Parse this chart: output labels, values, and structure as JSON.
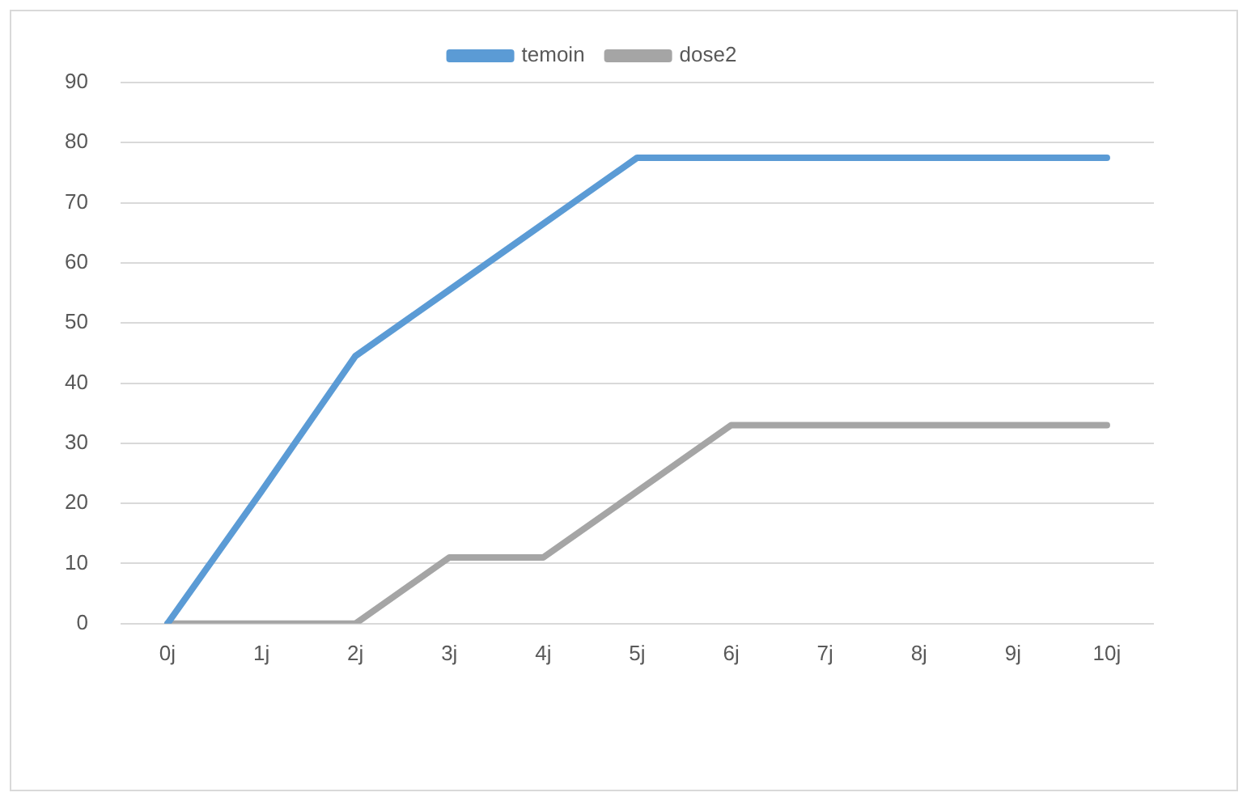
{
  "chart_data": {
    "type": "line",
    "categories": [
      "0j",
      "1j",
      "2j",
      "3j",
      "4j",
      "5j",
      "6j",
      "7j",
      "8j",
      "9j",
      "10j"
    ],
    "series": [
      {
        "name": "temoin",
        "color": "#5b9bd5",
        "values": [
          0,
          22,
          44.5,
          55.5,
          66.5,
          77.5,
          77.5,
          77.5,
          77.5,
          77.5,
          77.5
        ]
      },
      {
        "name": "dose2",
        "color": "#a5a5a5",
        "values": [
          0,
          0,
          0,
          11,
          11,
          22,
          33,
          33,
          33,
          33,
          33
        ]
      }
    ],
    "ylim": [
      0,
      90
    ],
    "yticks": [
      0,
      10,
      20,
      30,
      40,
      50,
      60,
      70,
      80,
      90
    ],
    "grid": "y",
    "legend": "top",
    "marker": "none",
    "line_style": "solid"
  }
}
